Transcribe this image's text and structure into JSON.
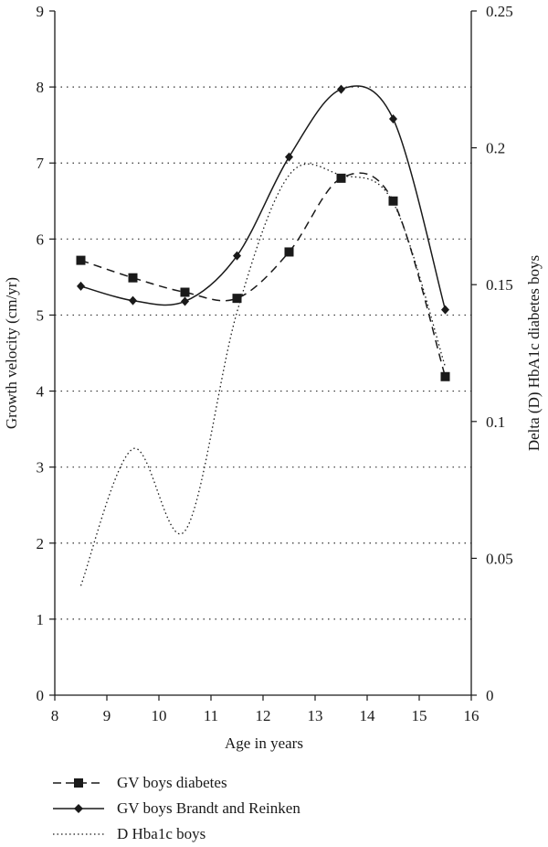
{
  "chart_data": {
    "type": "line",
    "xlabel": "Age in years",
    "ylabel": "Growth velocity (cm/yr)",
    "y2label": "Delta (D) HbA1c diabetes boys",
    "xlim": [
      8,
      16
    ],
    "ylim": [
      0,
      9
    ],
    "y2lim": [
      0,
      0.25
    ],
    "xticks": [
      "8",
      "9",
      "10",
      "11",
      "12",
      "13",
      "14",
      "15",
      "16"
    ],
    "yticks": [
      "0",
      "1",
      "2",
      "3",
      "4",
      "5",
      "6",
      "7",
      "8",
      "9"
    ],
    "y2ticks": [
      "0",
      "0.05",
      "0.1",
      "0.15",
      "0.2",
      "0.25"
    ],
    "grid": "horizontal dotted",
    "legend_position": "bottom-left",
    "series": [
      {
        "name": "GV boys diabetes",
        "axis": "left",
        "style": "dashed",
        "marker": "square",
        "color": "#1a1a1a",
        "x": [
          8.5,
          9.5,
          10.5,
          11.5,
          12.5,
          13.5,
          14.5,
          15.5
        ],
        "y": [
          5.72,
          5.49,
          5.3,
          5.22,
          5.83,
          6.8,
          6.5,
          4.19
        ]
      },
      {
        "name": "GV boys Brandt and Reinken",
        "axis": "left",
        "style": "solid",
        "marker": "diamond",
        "color": "#1a1a1a",
        "x": [
          8.5,
          9.5,
          10.5,
          11.5,
          12.5,
          13.5,
          14.5,
          15.5
        ],
        "y": [
          5.38,
          5.19,
          5.18,
          5.78,
          7.08,
          7.97,
          7.58,
          5.07
        ]
      },
      {
        "name": "D Hba1c boys",
        "axis": "right",
        "style": "dotted",
        "marker": "none",
        "color": "#1a1a1a",
        "x": [
          8.5,
          9.5,
          10.5,
          11.5,
          12.5,
          13.5,
          14.5,
          15.5
        ],
        "y": [
          0.04,
          0.09,
          0.06,
          0.14,
          0.19,
          0.19,
          0.18,
          0.12
        ]
      }
    ]
  }
}
